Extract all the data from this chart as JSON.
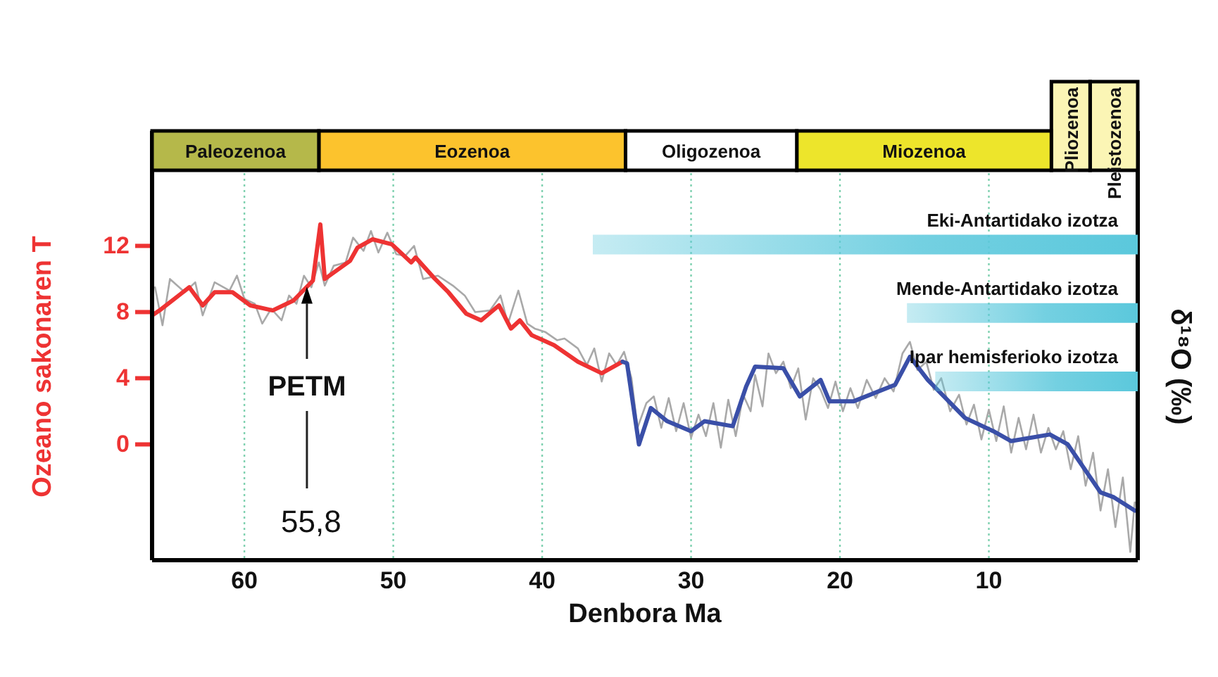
{
  "chart_data": [
    {
      "type": "bar",
      "orientation": "horizontal",
      "stacked": true,
      "categories": [
        null
      ],
      "xlim": [
        66.2,
        0
      ],
      "series": [
        {
          "name": "Pleistozenoa",
          "color": "#fbf5b5",
          "values": [
            3.2
          ]
        },
        {
          "name": "Pliozenoa",
          "color": "#fbf5b5",
          "values": [
            2.6
          ]
        },
        {
          "name": "Miozenoa",
          "color": "#ede52b",
          "values": [
            17.1
          ]
        },
        {
          "name": "Oligozenoa",
          "color": "#ffffff",
          "values": [
            11.5
          ]
        },
        {
          "name": "Eozenoa",
          "color": "#fcc32d",
          "values": [
            20.6
          ]
        },
        {
          "name": "Paleozenoa",
          "color": "#b5b84a",
          "values": [
            11.2
          ]
        }
      ]
    },
    {
      "type": "line",
      "xlabel": "Denbora Ma",
      "ylabel": "Ozeano sakonaren T",
      "y2label": "δ¹⁸O (‰)",
      "xlim": [
        66.2,
        0
      ],
      "xticks": [
        60,
        50,
        40,
        30,
        20,
        10
      ],
      "ylim": [
        -7,
        16.4
      ],
      "yticks": [
        0,
        4,
        8,
        12
      ],
      "grid": "x",
      "series": [
        {
          "color": "#a9a9a9",
          "x": [
            66,
            65.5,
            65,
            64,
            63.3,
            62.8,
            62,
            61,
            60.5,
            60,
            59.3,
            58.8,
            58.2,
            57.5,
            57,
            56.5,
            56,
            55.5,
            55,
            54.6,
            54,
            53.2,
            52.7,
            52,
            51.5,
            51,
            50.4,
            49.8,
            49.2,
            48.6,
            48,
            47,
            46,
            45.2,
            44.5,
            43.5,
            42.8,
            42.3,
            41.6,
            41,
            40.5,
            39.8,
            39,
            38.5,
            37.6,
            37,
            36.5,
            36,
            35.5,
            35,
            34.5,
            34,
            33.6,
            33,
            32.5,
            32,
            31.5,
            31,
            30.5,
            30,
            29.5,
            29,
            28.5,
            28,
            27.5,
            27,
            26.5,
            26,
            25.7,
            25.2,
            24.8,
            24.3,
            23.8,
            23.3,
            22.8,
            22.3,
            21.8,
            21.3,
            20.8,
            20.3,
            19.8,
            19.3,
            18.8,
            18.2,
            17.6,
            17,
            16.4,
            15.8,
            15.3,
            14.8,
            14.2,
            13.7,
            13.2,
            12.6,
            12,
            11.5,
            11,
            10.5,
            10,
            9.5,
            9,
            8.5,
            8,
            7.5,
            7,
            6.5,
            6,
            5.5,
            5,
            4.5,
            4,
            3.5,
            3,
            2.5,
            2,
            1.5,
            1,
            0.5,
            0.2
          ],
          "values": [
            9.5,
            7.2,
            10,
            9.2,
            9.8,
            7.8,
            9.8,
            9.3,
            10.2,
            8.8,
            8.5,
            7.3,
            8.2,
            7.5,
            9,
            8.5,
            10.2,
            9.5,
            11,
            9.6,
            10.8,
            11,
            12.5,
            11.7,
            12.9,
            11.6,
            12.8,
            11.5,
            11.4,
            12,
            10,
            10.2,
            9.6,
            9,
            8,
            8.1,
            9,
            7.3,
            9.3,
            7.3,
            7,
            6.8,
            6.3,
            6.4,
            5.8,
            4.8,
            5.8,
            3.8,
            5.5,
            4.8,
            5.6,
            4,
            1,
            2.5,
            2.9,
            1,
            2.8,
            0.8,
            2.5,
            0.4,
            1.8,
            0.5,
            2.5,
            -0.2,
            2.7,
            0.5,
            3,
            2,
            4.2,
            2.3,
            5.5,
            4.3,
            5,
            3.4,
            4.6,
            1.5,
            4,
            3.3,
            2.2,
            3.8,
            2,
            3.4,
            2.2,
            3.9,
            2.8,
            4,
            3.2,
            5.5,
            6.2,
            4.5,
            5,
            3.3,
            4,
            2,
            3,
            1.2,
            2.4,
            0.3,
            2.1,
            0.2,
            2.3,
            -0.5,
            1.6,
            -0.3,
            1.8,
            -0.5,
            1,
            -0.3,
            0.8,
            -1.5,
            0.5,
            -2.5,
            -0.5,
            -4,
            -1.5,
            -5,
            -2,
            -6.5,
            -3.5
          ]
        },
        {
          "color": "#ee3333",
          "x": [
            66.2,
            65.7,
            63.7,
            62.8,
            62,
            60.8,
            59.6,
            58.1,
            56.7,
            55.4,
            54.9,
            54.6,
            52.9,
            52.4,
            51.4,
            50.1,
            48.8,
            48.5,
            47.3,
            46.3,
            45.1,
            44.1,
            42.9,
            42.1,
            41.5,
            40.7,
            39.2,
            37.6,
            36,
            34.6
          ],
          "values": [
            7.8,
            8.1,
            9.5,
            8.4,
            9.2,
            9.2,
            8.4,
            8.1,
            8.7,
            9.9,
            13.3,
            10,
            11.1,
            11.9,
            12.4,
            12.1,
            11,
            11.3,
            10.1,
            9.2,
            7.9,
            7.5,
            8.4,
            7,
            7.5,
            6.6,
            6,
            5,
            4.3,
            5
          ]
        },
        {
          "color": "#3a4fa8",
          "x": [
            34.6,
            34.3,
            33.5,
            32.7,
            31.6,
            30,
            29.1,
            27.2,
            26.3,
            25.7,
            23.8,
            22.7,
            21.3,
            20.7,
            19.1,
            16.3,
            15.3,
            14.1,
            11.6,
            9.7,
            8.5,
            5.9,
            4.7,
            2.5,
            1.6,
            0.2
          ],
          "values": [
            5,
            4.9,
            0,
            2.2,
            1.4,
            0.8,
            1.4,
            1.1,
            3.5,
            4.7,
            4.6,
            2.9,
            3.9,
            2.6,
            2.6,
            3.6,
            5.3,
            3.9,
            1.6,
            0.8,
            0.2,
            0.6,
            0,
            -2.9,
            -3.2,
            -4
          ]
        }
      ],
      "ref_lines": [
        {
          "axis": "x",
          "value": 55.8,
          "label": "55,8"
        }
      ],
      "annotations": [
        "PETM"
      ]
    },
    {
      "type": "bar",
      "orientation": "horizontal",
      "categories": [
        "Eki-Antartidako izotza",
        "Mende-Antartidako izotza",
        "Ipar hemisferioko izotza"
      ],
      "xlim": [
        66.2,
        0
      ],
      "values": [
        36.6,
        15.5,
        13.6
      ],
      "color": "#5bc8dc"
    }
  ]
}
